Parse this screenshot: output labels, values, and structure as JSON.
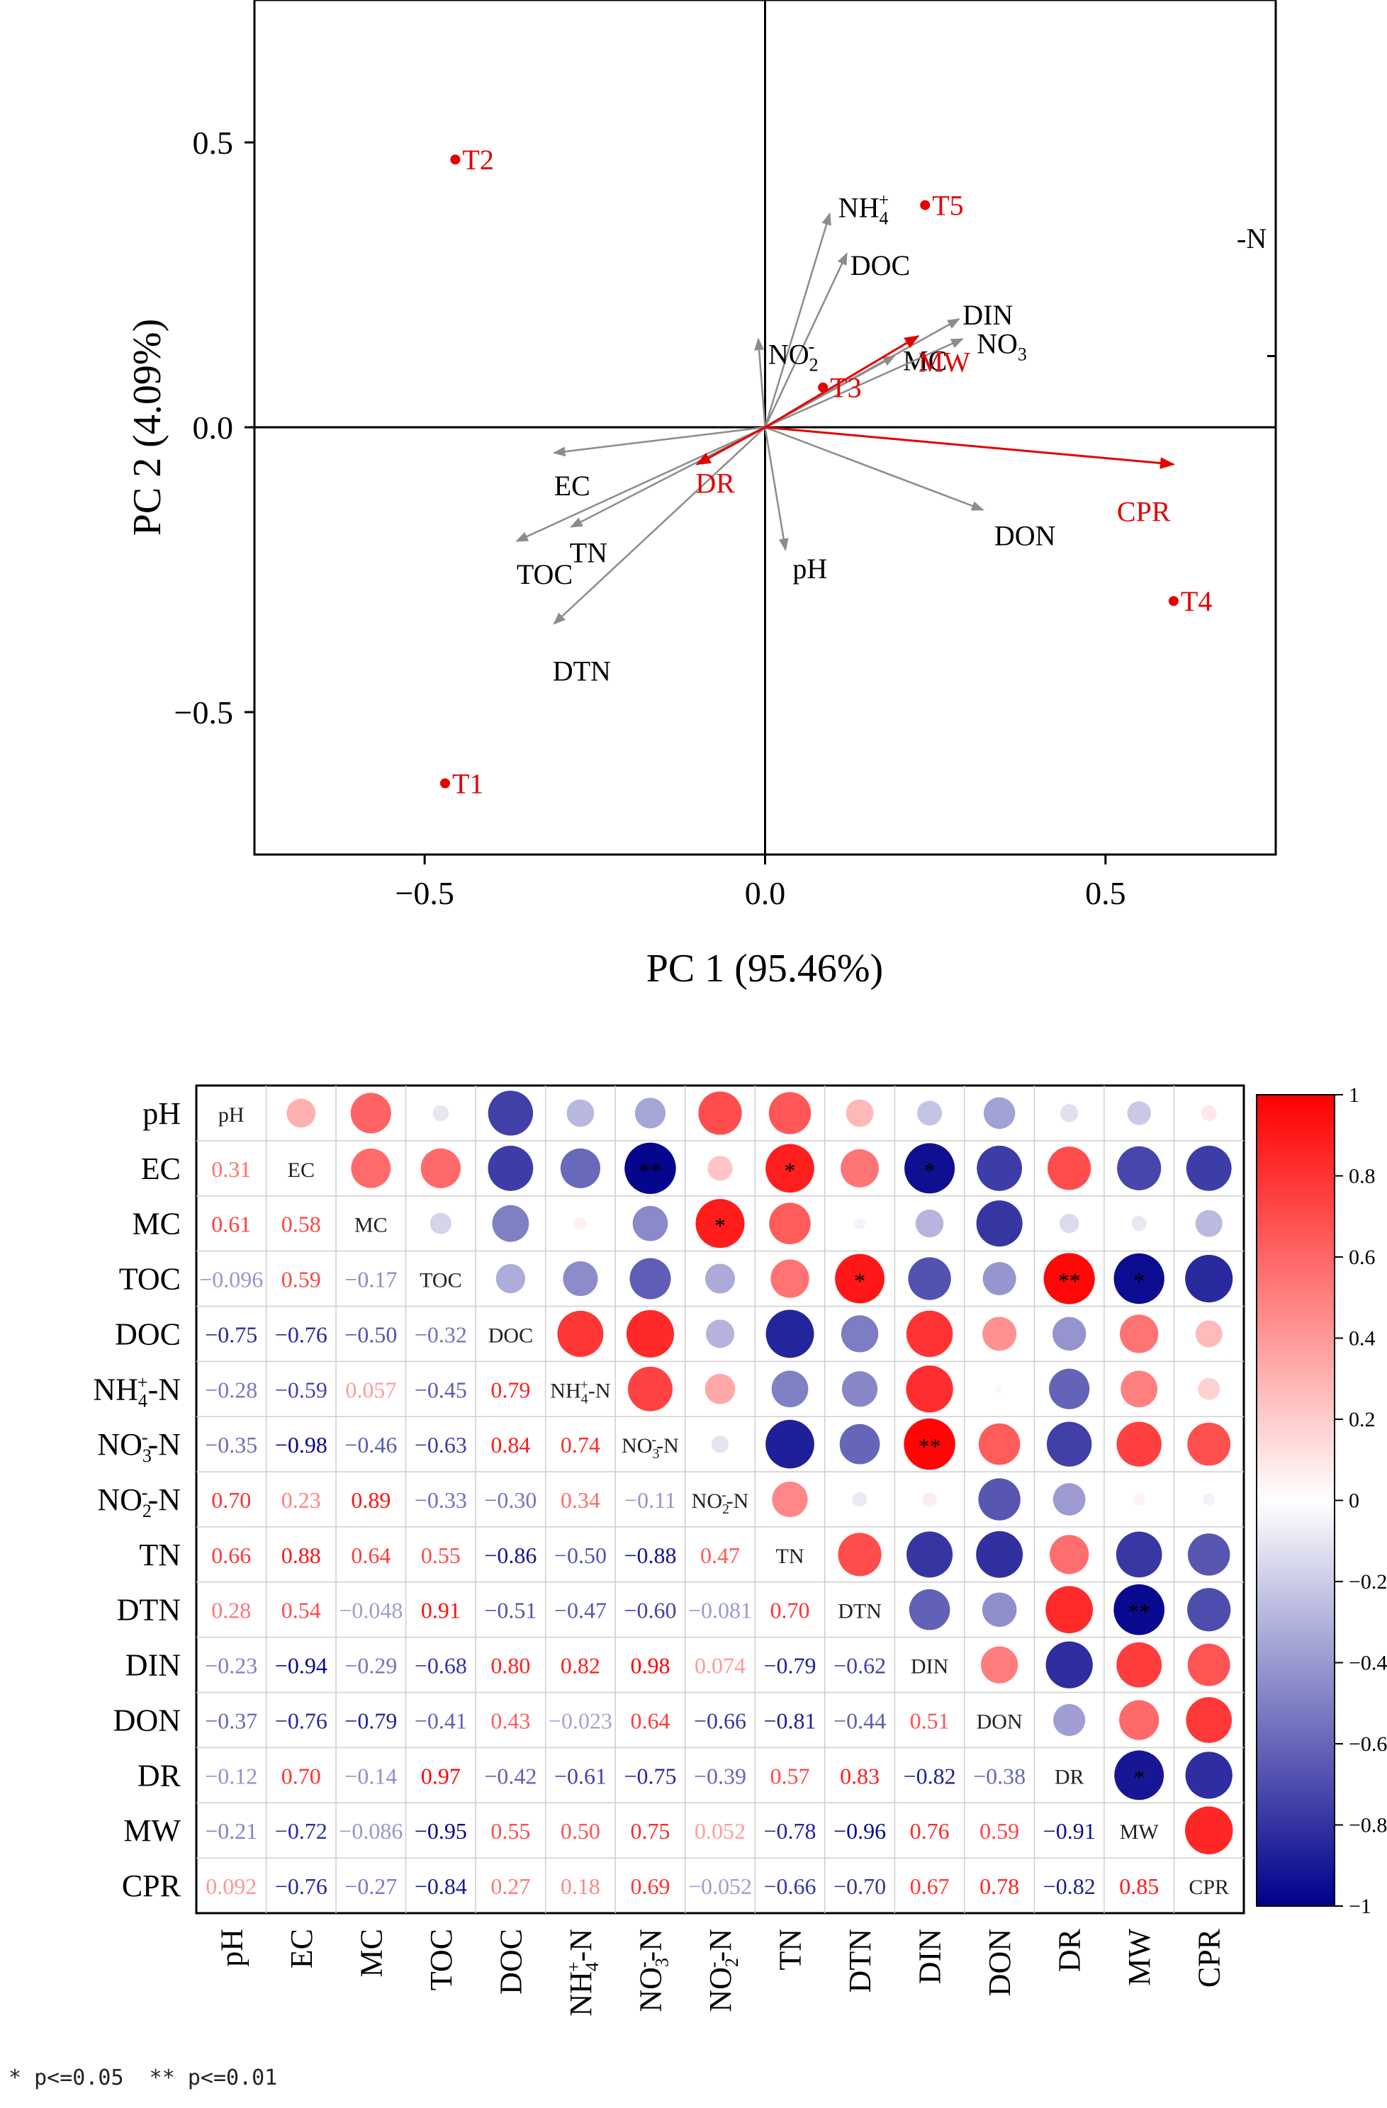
{
  "chart_data": [
    {
      "type": "scatter",
      "subtype": "pca-biplot",
      "xlabel": "PC 1 (95.46%)",
      "ylabel": "PC 2 (4.09%)",
      "xlim": [
        -0.75,
        0.75
      ],
      "ylim": [
        -0.75,
        0.75
      ],
      "xticks": [
        -0.5,
        0.0,
        0.5
      ],
      "yticks": [
        -0.5,
        0.0,
        0.5
      ],
      "xtick_labels": [
        "−0.5",
        "0.0",
        "0.5"
      ],
      "ytick_labels": [
        "−0.5",
        "0.0",
        "0.5"
      ],
      "stray_label": "-N",
      "points": [
        {
          "name": "T1",
          "x": -0.47,
          "y": -0.625
        },
        {
          "name": "T2",
          "x": -0.455,
          "y": 0.47
        },
        {
          "name": "T3",
          "x": 0.085,
          "y": 0.07
        },
        {
          "name": "T4",
          "x": 0.6,
          "y": -0.305
        },
        {
          "name": "T5",
          "x": 0.235,
          "y": 0.39
        }
      ],
      "arrows_gray": [
        {
          "label": "pH",
          "x": 0.03,
          "y": -0.215
        },
        {
          "label": "EC",
          "x": -0.31,
          "y": -0.045
        },
        {
          "label": "TOC",
          "x": -0.365,
          "y": -0.2
        },
        {
          "label": "TN",
          "x": -0.285,
          "y": -0.175
        },
        {
          "label": "DTN",
          "x": -0.31,
          "y": -0.345
        },
        {
          "label": "DOC",
          "x": 0.12,
          "y": 0.305
        },
        {
          "label": "NH4+",
          "x": 0.095,
          "y": 0.375
        },
        {
          "label": "NO2-",
          "x": -0.01,
          "y": 0.155
        },
        {
          "label": "MC",
          "x": 0.19,
          "y": 0.125
        },
        {
          "label": "DIN",
          "x": 0.285,
          "y": 0.19
        },
        {
          "label": "NO3",
          "x": 0.29,
          "y": 0.155
        },
        {
          "label": "DON",
          "x": 0.32,
          "y": -0.145
        }
      ],
      "arrows_red": [
        {
          "label": "CPR",
          "x": 0.6,
          "y": -0.065
        },
        {
          "label": "DR",
          "x": -0.1,
          "y": -0.065
        },
        {
          "label": "MW",
          "x": 0.225,
          "y": 0.16
        }
      ]
    },
    {
      "type": "heatmap",
      "subtype": "correlation-matrix",
      "variables": [
        "pH",
        "EC",
        "MC",
        "TOC",
        "DOC",
        "NH4+-N",
        "NO3--N",
        "NO2--N",
        "TN",
        "DTN",
        "DIN",
        "DON",
        "DR",
        "MW",
        "CPR"
      ],
      "matrix": [
        [
          1,
          0.31,
          0.61,
          -0.096,
          -0.75,
          -0.28,
          -0.35,
          0.7,
          0.66,
          0.28,
          -0.23,
          -0.37,
          -0.12,
          -0.21,
          0.092
        ],
        [
          0.31,
          1,
          0.58,
          0.59,
          -0.76,
          -0.59,
          -0.98,
          0.23,
          0.88,
          0.54,
          -0.94,
          -0.76,
          0.7,
          -0.72,
          -0.76
        ],
        [
          0.61,
          0.58,
          1,
          -0.17,
          -0.5,
          0.057,
          -0.46,
          0.89,
          0.64,
          -0.048,
          -0.29,
          -0.79,
          -0.14,
          -0.086,
          -0.27
        ],
        [
          -0.096,
          0.59,
          -0.17,
          1,
          -0.32,
          -0.45,
          -0.63,
          -0.33,
          0.55,
          0.91,
          -0.68,
          -0.41,
          0.97,
          -0.95,
          -0.84
        ],
        [
          -0.75,
          -0.76,
          -0.5,
          -0.32,
          1,
          0.79,
          0.84,
          -0.3,
          -0.86,
          -0.51,
          0.8,
          0.43,
          -0.42,
          0.55,
          0.27
        ],
        [
          -0.28,
          -0.59,
          0.057,
          -0.45,
          0.79,
          1,
          0.74,
          0.34,
          -0.5,
          -0.47,
          0.82,
          -0.023,
          -0.61,
          0.5,
          0.18
        ],
        [
          -0.35,
          -0.98,
          -0.46,
          -0.63,
          0.84,
          0.74,
          1,
          -0.11,
          -0.88,
          -0.6,
          0.98,
          0.64,
          -0.75,
          0.75,
          0.69
        ],
        [
          0.7,
          0.23,
          0.89,
          -0.33,
          -0.3,
          0.34,
          -0.11,
          1,
          0.47,
          -0.081,
          0.074,
          -0.66,
          -0.39,
          0.052,
          -0.052
        ],
        [
          0.66,
          0.88,
          0.64,
          0.55,
          -0.86,
          -0.5,
          -0.88,
          0.47,
          1,
          0.7,
          -0.79,
          -0.81,
          0.57,
          -0.78,
          -0.66
        ],
        [
          0.28,
          0.54,
          -0.048,
          0.91,
          -0.51,
          -0.47,
          -0.6,
          -0.081,
          0.7,
          1,
          -0.62,
          -0.44,
          0.83,
          -0.96,
          -0.7
        ],
        [
          -0.23,
          -0.94,
          -0.29,
          -0.68,
          0.8,
          0.82,
          0.98,
          0.074,
          -0.79,
          -0.62,
          1,
          0.51,
          -0.82,
          0.76,
          0.67
        ],
        [
          -0.37,
          -0.76,
          -0.79,
          -0.41,
          0.43,
          -0.023,
          0.64,
          -0.66,
          -0.81,
          -0.44,
          0.51,
          1,
          -0.38,
          0.59,
          0.78
        ],
        [
          -0.12,
          0.7,
          -0.14,
          0.97,
          -0.42,
          -0.61,
          -0.75,
          -0.39,
          0.57,
          0.83,
          -0.82,
          -0.38,
          1,
          -0.91,
          -0.82
        ],
        [
          -0.21,
          -0.72,
          -0.086,
          -0.95,
          0.55,
          0.5,
          0.75,
          0.052,
          -0.78,
          -0.96,
          0.76,
          0.59,
          -0.91,
          1,
          0.85
        ],
        [
          0.092,
          -0.76,
          -0.27,
          -0.84,
          0.27,
          0.18,
          0.69,
          -0.052,
          -0.66,
          -0.7,
          0.67,
          0.78,
          -0.82,
          0.85,
          1
        ]
      ],
      "lower_labels": [
        [
          "0.31"
        ],
        [
          "0.61",
          "0.58"
        ],
        [
          "−0.096",
          "0.59",
          "−0.17"
        ],
        [
          "−0.75",
          "−0.76",
          "−0.50",
          "−0.32"
        ],
        [
          "−0.28",
          "−0.59",
          "0.057",
          "−0.45",
          "0.79"
        ],
        [
          "−0.35",
          "−0.98",
          "−0.46",
          "−0.63",
          "0.84",
          "0.74"
        ],
        [
          "0.70",
          "0.23",
          "0.89",
          "−0.33",
          "−0.30",
          "0.34",
          "−0.11"
        ],
        [
          "0.66",
          "0.88",
          "0.64",
          "0.55",
          "−0.86",
          "−0.50",
          "−0.88",
          "0.47"
        ],
        [
          "0.28",
          "0.54",
          "−0.048",
          "0.91",
          "−0.51",
          "−0.47",
          "−0.60",
          "−0.081",
          "0.70"
        ],
        [
          "−0.23",
          "−0.94",
          "−0.29",
          "−0.68",
          "0.80",
          "0.82",
          "0.98",
          "0.074",
          "−0.79",
          "−0.62"
        ],
        [
          "−0.37",
          "−0.76",
          "−0.79",
          "−0.41",
          "0.43",
          "−0.023",
          "0.64",
          "−0.66",
          "−0.81",
          "−0.44",
          "0.51"
        ],
        [
          "−0.12",
          "0.70",
          "−0.14",
          "0.97",
          "−0.42",
          "−0.61",
          "−0.75",
          "−0.39",
          "0.57",
          "0.83",
          "−0.82",
          "−0.38"
        ],
        [
          "−0.21",
          "−0.72",
          "−0.086",
          "−0.95",
          "0.55",
          "0.50",
          "0.75",
          "0.052",
          "−0.78",
          "−0.96",
          "0.76",
          "0.59",
          "−0.91"
        ],
        [
          "0.092",
          "−0.76",
          "−0.27",
          "−0.84",
          "0.27",
          "0.18",
          "0.69",
          "−0.052",
          "−0.66",
          "−0.70",
          "0.67",
          "0.78",
          "−0.82",
          "0.85"
        ]
      ],
      "significance": [
        {
          "row": 1,
          "col": 6,
          "mark": "**"
        },
        {
          "row": 1,
          "col": 8,
          "mark": "*"
        },
        {
          "row": 1,
          "col": 10,
          "mark": "*"
        },
        {
          "row": 2,
          "col": 7,
          "mark": "*"
        },
        {
          "row": 3,
          "col": 9,
          "mark": "*"
        },
        {
          "row": 3,
          "col": 12,
          "mark": "**"
        },
        {
          "row": 3,
          "col": 13,
          "mark": "*"
        },
        {
          "row": 6,
          "col": 10,
          "mark": "**"
        },
        {
          "row": 9,
          "col": 13,
          "mark": "**"
        },
        {
          "row": 12,
          "col": 13,
          "mark": "*"
        }
      ],
      "colorbar": {
        "min": -1,
        "max": 1,
        "ticks": [
          1,
          0.8,
          0.6,
          0.4,
          0.2,
          0,
          -0.2,
          -0.4,
          -0.6,
          -0.8,
          -1
        ],
        "tick_labels": [
          "1",
          "0.8",
          "0.6",
          "0.4",
          "0.2",
          "0",
          "−0.2",
          "−0.4",
          "−0.6",
          "−0.8",
          "−1"
        ]
      },
      "colors": {
        "positive": "#ff0000",
        "neutral": "#ffffff",
        "negative": "#00008b",
        "arrow_gray": "#8c8c8c",
        "arrow_red": "#e60000",
        "point_red": "#e60000"
      },
      "footnote": "* p<=0.05  ** p<=0.01"
    }
  ]
}
